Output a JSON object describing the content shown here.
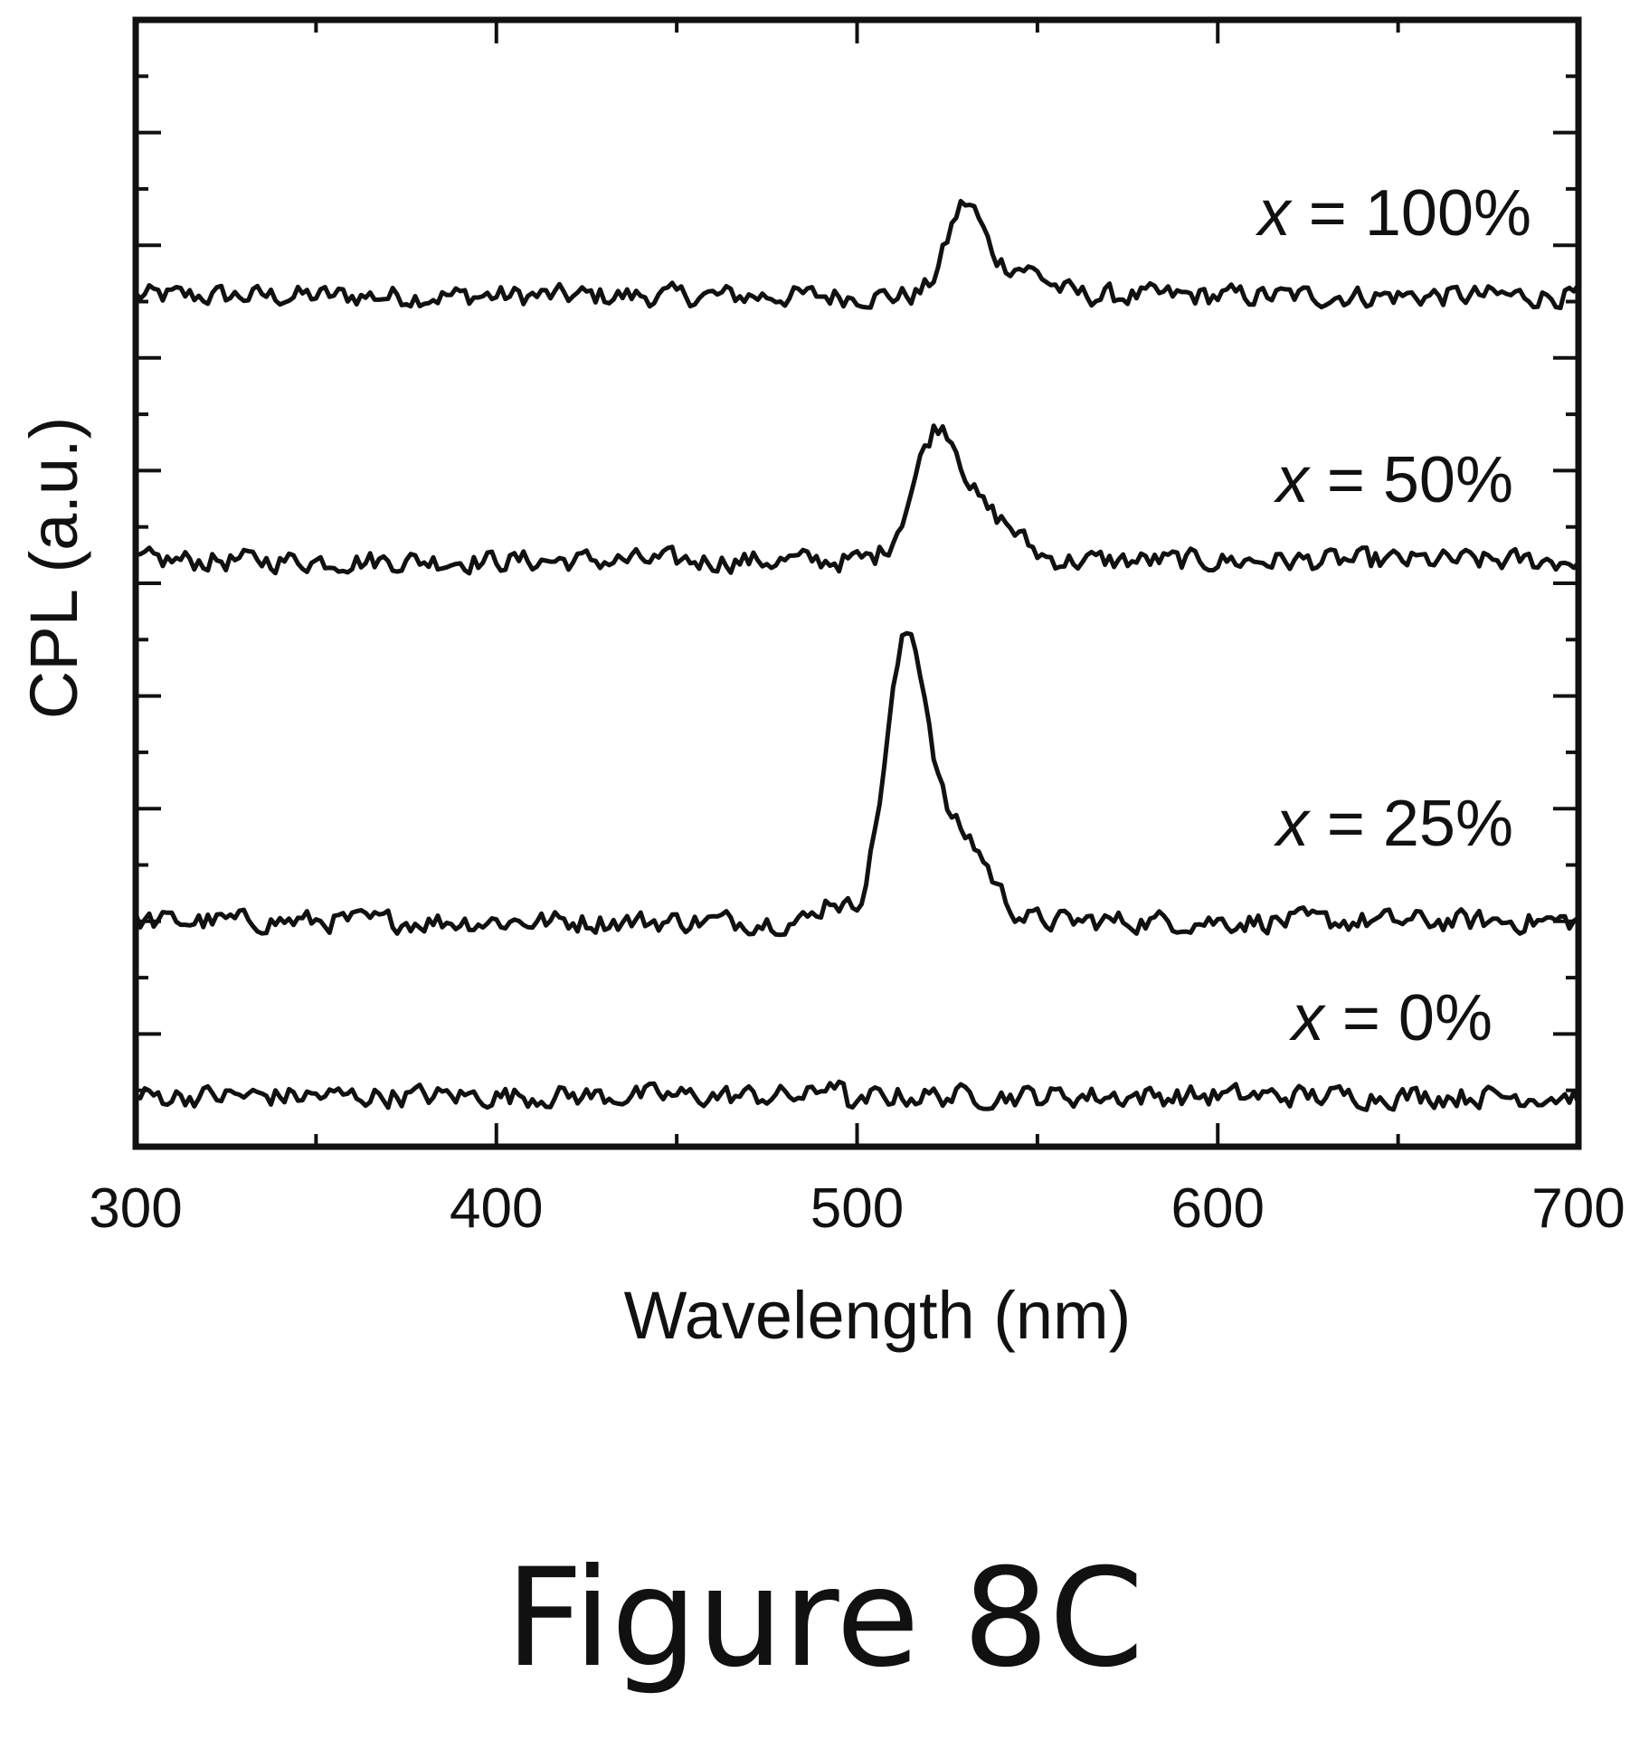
{
  "figure_caption": "Figure 8C",
  "chart_data": {
    "type": "line",
    "xlabel": "Wavelength (nm)",
    "ylabel": "CPL (a.u.)",
    "xlim": [
      300,
      700
    ],
    "xticks": [
      300,
      400,
      500,
      600,
      700
    ],
    "ylim": [
      0,
      1
    ],
    "y_tick_labels": false,
    "grid": false,
    "legend": "none",
    "line_color": "#111111",
    "series": [
      {
        "name": "x = 100%",
        "var": "x",
        "rest": " = 100%",
        "baseline": 0.755,
        "peaks": [
          [
            530,
            0.08,
            5
          ],
          [
            545,
            0.025,
            7
          ]
        ]
      },
      {
        "name": "x = 50%",
        "var": "x",
        "rest": " = 50%",
        "baseline": 0.52,
        "peaks": [
          [
            523,
            0.12,
            7
          ],
          [
            540,
            0.03,
            6
          ]
        ]
      },
      {
        "name": "x = 25%",
        "var": "x",
        "rest": " = 25%",
        "baseline": 0.2,
        "peaks": [
          [
            514,
            0.25,
            6
          ],
          [
            530,
            0.07,
            7
          ],
          [
            493,
            0.02,
            3
          ]
        ]
      },
      {
        "name": "x = 0%",
        "var": "x",
        "rest": " = 0%",
        "baseline": 0.045,
        "peaks": [
          [
            493,
            0.015,
            2
          ],
          [
            500,
            -0.012,
            2
          ]
        ]
      }
    ]
  }
}
